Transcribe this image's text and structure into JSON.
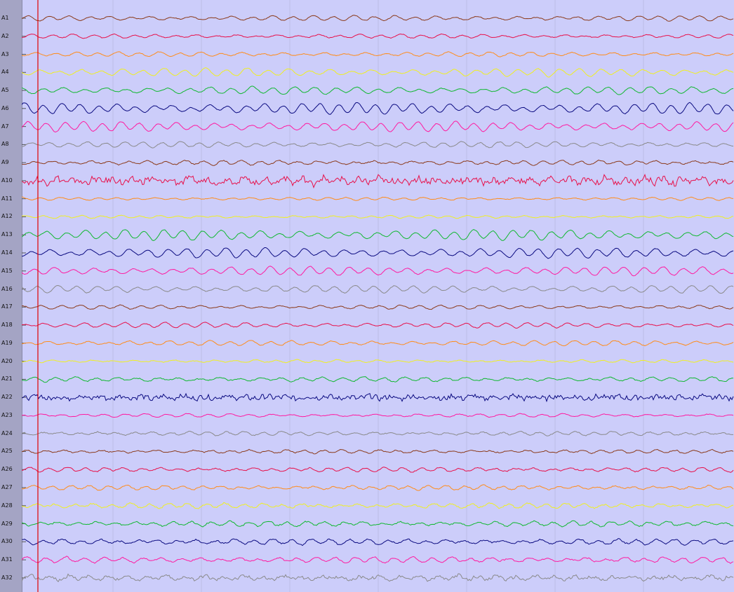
{
  "channels": [
    {
      "label": "A1",
      "color": "#8b3a1a",
      "amp": 0.45,
      "noise": 0.1,
      "seed": 11
    },
    {
      "label": "A2",
      "color": "#e8104a",
      "amp": 0.35,
      "noise": 0.1,
      "seed": 12
    },
    {
      "label": "A3",
      "color": "#ff8c1a",
      "amp": 0.4,
      "noise": 0.1,
      "seed": 13
    },
    {
      "label": "A4",
      "color": "#f0f020",
      "amp": 0.7,
      "noise": 0.1,
      "seed": 14
    },
    {
      "label": "A5",
      "color": "#10b830",
      "amp": 0.65,
      "noise": 0.1,
      "seed": 15
    },
    {
      "label": "A6",
      "color": "#0a0a80",
      "amp": 0.95,
      "noise": 0.1,
      "seed": 16
    },
    {
      "label": "A7",
      "color": "#ff1aa0",
      "amp": 0.85,
      "noise": 0.1,
      "seed": 17
    },
    {
      "label": "A8",
      "color": "#8a8a8a",
      "amp": 0.5,
      "noise": 0.1,
      "seed": 18
    },
    {
      "label": "A9",
      "color": "#8b3a1a",
      "amp": 0.4,
      "noise": 0.15,
      "seed": 19
    },
    {
      "label": "A10",
      "color": "#e8104a",
      "amp": 0.55,
      "noise": 0.9,
      "seed": 20
    },
    {
      "label": "A11",
      "color": "#ff8c1a",
      "amp": 0.25,
      "noise": 0.08,
      "seed": 21
    },
    {
      "label": "A12",
      "color": "#f0f020",
      "amp": 0.25,
      "noise": 0.08,
      "seed": 22
    },
    {
      "label": "A13",
      "color": "#10b830",
      "amp": 0.9,
      "noise": 0.1,
      "seed": 23
    },
    {
      "label": "A14",
      "color": "#0a0a80",
      "amp": 0.85,
      "noise": 0.1,
      "seed": 24
    },
    {
      "label": "A15",
      "color": "#ff1aa0",
      "amp": 0.75,
      "noise": 0.1,
      "seed": 25
    },
    {
      "label": "A16",
      "color": "#8a8a8a",
      "amp": 0.65,
      "noise": 0.1,
      "seed": 26
    },
    {
      "label": "A17",
      "color": "#8b3a1a",
      "amp": 0.35,
      "noise": 0.1,
      "seed": 27
    },
    {
      "label": "A18",
      "color": "#e8104a",
      "amp": 0.45,
      "noise": 0.1,
      "seed": 28
    },
    {
      "label": "A19",
      "color": "#ff8c1a",
      "amp": 0.45,
      "noise": 0.1,
      "seed": 29
    },
    {
      "label": "A20",
      "color": "#f0f020",
      "amp": 0.25,
      "noise": 0.1,
      "seed": 30
    },
    {
      "label": "A21",
      "color": "#10b830",
      "amp": 0.4,
      "noise": 0.15,
      "seed": 31
    },
    {
      "label": "A22",
      "color": "#0a0a80",
      "amp": 0.3,
      "noise": 0.7,
      "seed": 32
    },
    {
      "label": "A23",
      "color": "#ff1aa0",
      "amp": 0.3,
      "noise": 0.1,
      "seed": 33
    },
    {
      "label": "A24",
      "color": "#8a8a8a",
      "amp": 0.35,
      "noise": 0.15,
      "seed": 34
    },
    {
      "label": "A25",
      "color": "#8b3a1a",
      "amp": 0.3,
      "noise": 0.15,
      "seed": 35
    },
    {
      "label": "A26",
      "color": "#e8104a",
      "amp": 0.4,
      "noise": 0.15,
      "seed": 36
    },
    {
      "label": "A27",
      "color": "#ff8c1a",
      "amp": 0.4,
      "noise": 0.15,
      "seed": 37
    },
    {
      "label": "A28",
      "color": "#f0f020",
      "amp": 0.45,
      "noise": 0.2,
      "seed": 38
    },
    {
      "label": "A29",
      "color": "#10b830",
      "amp": 0.45,
      "noise": 0.2,
      "seed": 39
    },
    {
      "label": "A30",
      "color": "#0a0a80",
      "amp": 0.5,
      "noise": 0.2,
      "seed": 40
    },
    {
      "label": "A31",
      "color": "#ff1aa0",
      "amp": 0.5,
      "noise": 0.2,
      "seed": 41
    },
    {
      "label": "A32",
      "color": "#8a8a8a",
      "amp": 0.45,
      "noise": 0.45,
      "seed": 42
    }
  ],
  "colors": {
    "background": "#cccdfa",
    "label_column": "#a4a4c4",
    "grid": "#bcbde6",
    "cursor": "#e00000"
  }
}
